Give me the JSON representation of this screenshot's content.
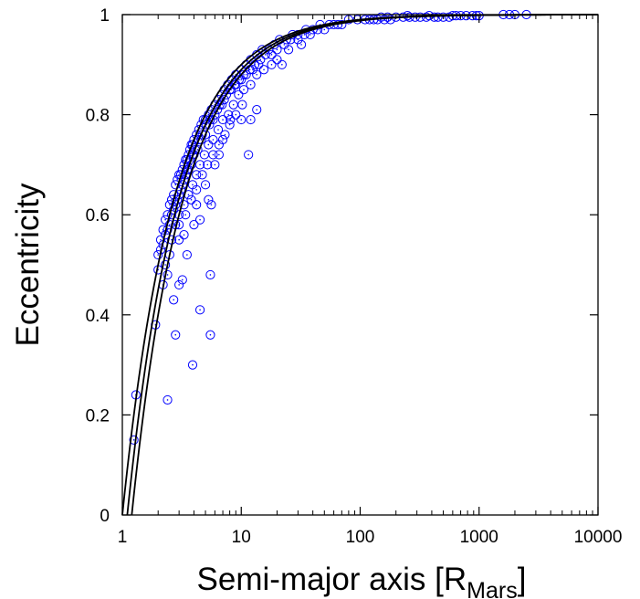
{
  "chart_data": {
    "type": "scatter",
    "title": "",
    "xlabel": "Semi-major axis [R",
    "xlabel_sub": "Mars",
    "xlabel_suffix": "]",
    "ylabel": "Eccentricity",
    "x_scale": "log",
    "xlim": [
      1,
      10000
    ],
    "ylim": [
      0,
      1
    ],
    "x_ticks": [
      1,
      10,
      100,
      1000,
      10000
    ],
    "x_tick_labels": [
      "1",
      "10",
      "100",
      "1000",
      "10000"
    ],
    "y_ticks": [
      0,
      0.2,
      0.4,
      0.6,
      0.8,
      1
    ],
    "y_tick_labels": [
      "0",
      "0.2",
      "0.4",
      "0.6",
      "0.8",
      "1"
    ],
    "grid": false,
    "legend": "none",
    "marker_color": "#0000ff",
    "curve_color": "#000000",
    "curves": [
      {
        "periapsis": 1.0
      },
      {
        "periapsis": 1.1
      },
      {
        "periapsis": 1.2
      }
    ],
    "series": [
      {
        "marker": "open-circle",
        "points": [
          [
            1.3,
            0.24
          ],
          [
            1.25,
            0.15
          ],
          [
            2.4,
            0.23
          ],
          [
            3.9,
            0.3
          ],
          [
            4.5,
            0.41
          ],
          [
            5.5,
            0.36
          ],
          [
            2.8,
            0.36
          ],
          [
            5.5,
            0.48
          ],
          [
            2.7,
            0.43
          ],
          [
            2.2,
            0.46
          ],
          [
            2.4,
            0.48
          ],
          [
            1.9,
            0.38
          ],
          [
            3.2,
            0.47
          ],
          [
            3.0,
            0.46
          ],
          [
            2.0,
            0.49
          ],
          [
            2.3,
            0.5
          ],
          [
            2.1,
            0.53
          ],
          [
            2.5,
            0.52
          ],
          [
            5.3,
            0.63
          ],
          [
            5.6,
            0.62
          ],
          [
            3.5,
            0.52
          ],
          [
            4.0,
            0.58
          ],
          [
            11.5,
            0.72
          ],
          [
            10.0,
            0.79
          ],
          [
            8.1,
            0.79
          ],
          [
            12.0,
            0.79
          ],
          [
            4.5,
            0.59
          ],
          [
            6.0,
            0.7
          ],
          [
            3.0,
            0.55
          ],
          [
            3.3,
            0.56
          ],
          [
            7.0,
            0.75
          ],
          [
            22.0,
            0.9
          ],
          [
            13.5,
            0.81
          ],
          [
            5.0,
            0.66
          ],
          [
            4.2,
            0.62
          ],
          [
            6.5,
            0.72
          ],
          [
            2.0,
            0.52
          ],
          [
            2.1,
            0.55
          ],
          [
            2.2,
            0.57
          ],
          [
            2.3,
            0.59
          ],
          [
            2.4,
            0.6
          ],
          [
            2.5,
            0.62
          ],
          [
            2.6,
            0.63
          ],
          [
            2.7,
            0.64
          ],
          [
            2.8,
            0.66
          ],
          [
            2.9,
            0.67
          ],
          [
            3.0,
            0.68
          ],
          [
            3.1,
            0.68
          ],
          [
            3.2,
            0.69
          ],
          [
            3.3,
            0.7
          ],
          [
            3.4,
            0.71
          ],
          [
            3.5,
            0.71
          ],
          [
            3.6,
            0.72
          ],
          [
            3.7,
            0.73
          ],
          [
            3.8,
            0.74
          ],
          [
            3.9,
            0.74
          ],
          [
            4.0,
            0.75
          ],
          [
            4.2,
            0.76
          ],
          [
            4.4,
            0.77
          ],
          [
            4.6,
            0.78
          ],
          [
            4.8,
            0.79
          ],
          [
            5.0,
            0.79
          ],
          [
            5.3,
            0.8
          ],
          [
            5.6,
            0.81
          ],
          [
            6.0,
            0.82
          ],
          [
            6.4,
            0.83
          ],
          [
            6.8,
            0.84
          ],
          [
            7.2,
            0.85
          ],
          [
            7.7,
            0.86
          ],
          [
            8.3,
            0.87
          ],
          [
            9.0,
            0.88
          ],
          [
            10.0,
            0.89
          ],
          [
            11.0,
            0.9
          ],
          [
            12.0,
            0.91
          ],
          [
            13.5,
            0.92
          ],
          [
            15.0,
            0.93
          ],
          [
            17.0,
            0.93
          ],
          [
            19.0,
            0.94
          ],
          [
            21.0,
            0.95
          ],
          [
            24.0,
            0.95
          ],
          [
            27.0,
            0.96
          ],
          [
            30.0,
            0.96
          ],
          [
            35.0,
            0.97
          ],
          [
            40.0,
            0.97
          ],
          [
            46.0,
            0.98
          ],
          [
            55.0,
            0.98
          ],
          [
            65.0,
            0.98
          ],
          [
            80.0,
            0.99
          ],
          [
            95.0,
            0.99
          ],
          [
            110.0,
            0.99
          ],
          [
            2.2,
            0.54
          ],
          [
            2.4,
            0.57
          ],
          [
            2.6,
            0.6
          ],
          [
            2.8,
            0.62
          ],
          [
            3.0,
            0.64
          ],
          [
            3.2,
            0.66
          ],
          [
            3.4,
            0.68
          ],
          [
            3.6,
            0.69
          ],
          [
            3.8,
            0.7
          ],
          [
            4.0,
            0.72
          ],
          [
            4.3,
            0.73
          ],
          [
            4.6,
            0.75
          ],
          [
            5.0,
            0.76
          ],
          [
            5.4,
            0.78
          ],
          [
            5.8,
            0.79
          ],
          [
            6.3,
            0.81
          ],
          [
            6.9,
            0.82
          ],
          [
            7.5,
            0.84
          ],
          [
            8.2,
            0.85
          ],
          [
            9.0,
            0.86
          ],
          [
            10.0,
            0.87
          ],
          [
            11.0,
            0.88
          ],
          [
            12.5,
            0.89
          ],
          [
            14.0,
            0.9
          ],
          [
            16.0,
            0.92
          ],
          [
            18.0,
            0.92
          ],
          [
            20.0,
            0.93
          ],
          [
            23.0,
            0.94
          ],
          [
            26.0,
            0.95
          ],
          [
            30.0,
            0.95
          ],
          [
            34.0,
            0.96
          ],
          [
            38.0,
            0.96
          ],
          [
            44.0,
            0.97
          ],
          [
            50.0,
            0.97
          ],
          [
            60.0,
            0.98
          ],
          [
            70.0,
            0.98
          ],
          [
            2.3,
            0.56
          ],
          [
            2.5,
            0.58
          ],
          [
            2.7,
            0.61
          ],
          [
            2.9,
            0.63
          ],
          [
            3.1,
            0.65
          ],
          [
            3.3,
            0.67
          ],
          [
            3.5,
            0.69
          ],
          [
            3.7,
            0.71
          ],
          [
            3.9,
            0.72
          ],
          [
            4.1,
            0.73
          ],
          [
            4.4,
            0.75
          ],
          [
            4.7,
            0.76
          ],
          [
            5.1,
            0.78
          ],
          [
            5.5,
            0.79
          ],
          [
            6.0,
            0.8
          ],
          [
            6.6,
            0.82
          ],
          [
            7.2,
            0.83
          ],
          [
            8.0,
            0.85
          ],
          [
            8.8,
            0.86
          ],
          [
            9.6,
            0.87
          ],
          [
            10.5,
            0.88
          ],
          [
            11.8,
            0.89
          ],
          [
            13.0,
            0.9
          ],
          [
            14.5,
            0.91
          ],
          [
            2.6,
            0.55
          ],
          [
            2.8,
            0.58
          ],
          [
            3.0,
            0.6
          ],
          [
            3.3,
            0.62
          ],
          [
            3.6,
            0.64
          ],
          [
            3.9,
            0.66
          ],
          [
            4.2,
            0.68
          ],
          [
            4.5,
            0.7
          ],
          [
            4.9,
            0.72
          ],
          [
            5.3,
            0.74
          ],
          [
            5.8,
            0.75
          ],
          [
            6.4,
            0.77
          ],
          [
            7.0,
            0.79
          ],
          [
            7.8,
            0.8
          ],
          [
            8.6,
            0.82
          ],
          [
            9.5,
            0.84
          ],
          [
            10.5,
            0.85
          ],
          [
            12.0,
            0.86
          ],
          [
            13.5,
            0.88
          ],
          [
            15.5,
            0.89
          ],
          [
            18.0,
            0.9
          ],
          [
            20.0,
            0.91
          ],
          [
            25.0,
            0.93
          ],
          [
            32.0,
            0.94
          ],
          [
            3.0,
            0.58
          ],
          [
            3.4,
            0.6
          ],
          [
            3.8,
            0.63
          ],
          [
            4.2,
            0.65
          ],
          [
            4.7,
            0.68
          ],
          [
            5.2,
            0.7
          ],
          [
            5.8,
            0.72
          ],
          [
            6.5,
            0.74
          ],
          [
            7.3,
            0.76
          ],
          [
            8.0,
            0.78
          ],
          [
            9.0,
            0.8
          ],
          [
            10.2,
            0.82
          ],
          [
            120,
            0.99
          ],
          [
            140,
            0.99
          ],
          [
            160,
            0.99
          ],
          [
            180,
            0.99
          ],
          [
            200,
            0.995
          ],
          [
            230,
            0.995
          ],
          [
            260,
            0.995
          ],
          [
            290,
            0.995
          ],
          [
            320,
            0.995
          ],
          [
            360,
            0.995
          ],
          [
            420,
            0.995
          ],
          [
            450,
            0.995
          ],
          [
            500,
            0.995
          ],
          [
            560,
            0.995
          ],
          [
            600,
            0.998
          ],
          [
            640,
            0.998
          ],
          [
            700,
            0.998
          ],
          [
            780,
            0.998
          ],
          [
            880,
            0.998
          ],
          [
            950,
            0.998
          ],
          [
            1000,
            0.998
          ],
          [
            1600,
            1.0
          ],
          [
            1800,
            1.0
          ],
          [
            2000,
            1.0
          ],
          [
            2500,
            1.0
          ],
          [
            150,
            0.995
          ],
          [
            250,
            0.998
          ],
          [
            380,
            0.998
          ],
          [
            170,
            0.995
          ],
          [
            130,
            0.99
          ]
        ]
      }
    ]
  }
}
